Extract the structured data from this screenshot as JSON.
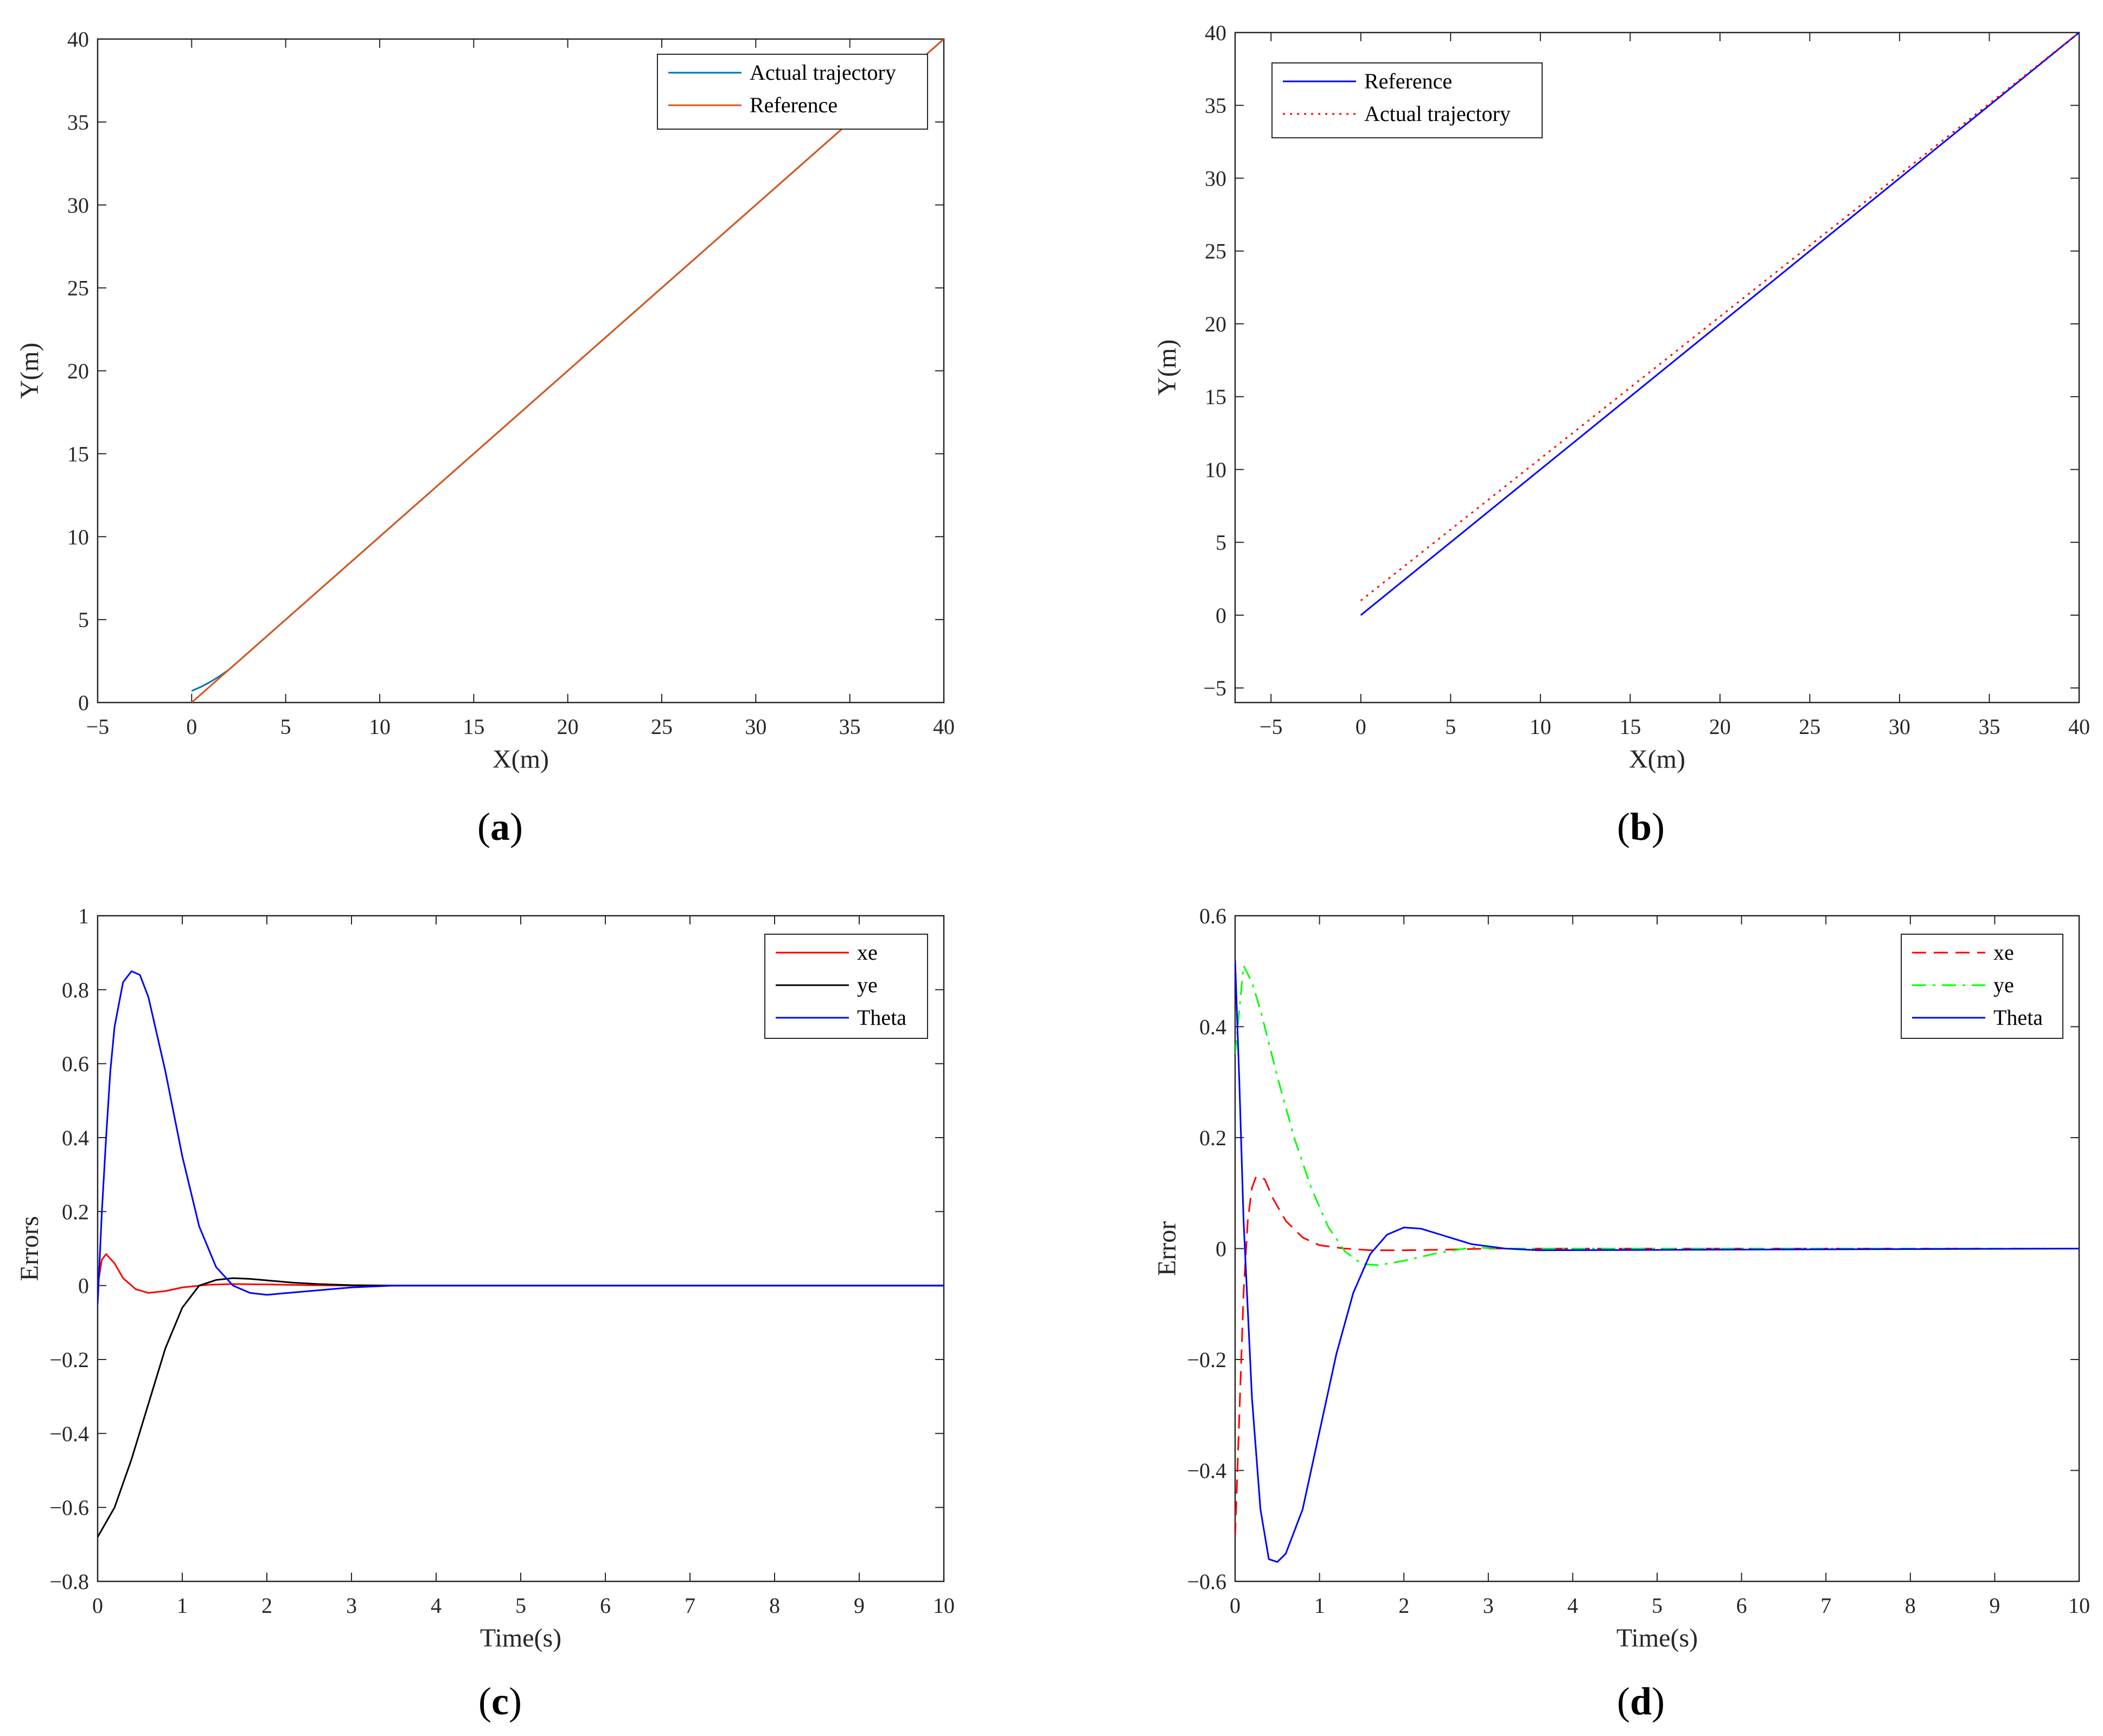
{
  "chart_data": [
    {
      "id": "a",
      "type": "line",
      "caption": {
        "open": "(",
        "letter": "a",
        "close": ")"
      },
      "xlabel": "X(m)",
      "ylabel": "Y(m)",
      "xlim": [
        -5,
        40
      ],
      "ylim": [
        0,
        40
      ],
      "xticks": [
        -5,
        0,
        5,
        10,
        15,
        20,
        25,
        30,
        35,
        40
      ],
      "yticks": [
        0,
        5,
        10,
        15,
        20,
        25,
        30,
        35,
        40
      ],
      "legend_position": "top-right",
      "series": [
        {
          "name": "Actual trajectory",
          "color": "#0072BD",
          "dash": "solid",
          "x": [
            0,
            0.5,
            1,
            1.5,
            2,
            2.5,
            3,
            40
          ],
          "y": [
            0.7,
            0.95,
            1.25,
            1.6,
            2.0,
            2.5,
            3.0,
            40
          ]
        },
        {
          "name": "Reference",
          "color": "#D95319",
          "dash": "solid",
          "x": [
            0,
            40
          ],
          "y": [
            0,
            40
          ]
        }
      ]
    },
    {
      "id": "b",
      "type": "line",
      "caption": {
        "open": "(",
        "letter": "b",
        "close": ")"
      },
      "xlabel": "X(m)",
      "ylabel": "Y(m)",
      "xlim": [
        -7,
        40
      ],
      "ylim": [
        -6,
        40
      ],
      "xticks": [
        -5,
        0,
        5,
        10,
        15,
        20,
        25,
        30,
        35,
        40
      ],
      "yticks": [
        -5,
        0,
        5,
        10,
        15,
        20,
        25,
        30,
        35,
        40
      ],
      "legend_position": "top-left",
      "series": [
        {
          "name": "Reference",
          "color": "#0000FF",
          "dash": "solid",
          "x": [
            0,
            40
          ],
          "y": [
            0,
            40
          ]
        },
        {
          "name": "Actual trajectory",
          "color": "#FF0000",
          "dash": "dotted",
          "x": [
            0,
            40
          ],
          "y": [
            1,
            40
          ]
        }
      ]
    },
    {
      "id": "c",
      "type": "line",
      "caption": {
        "open": "(",
        "letter": "c",
        "close": ")"
      },
      "xlabel": "Time(s)",
      "ylabel": "Errors",
      "xlim": [
        0,
        10
      ],
      "ylim": [
        -0.8,
        1
      ],
      "xticks": [
        0,
        1,
        2,
        3,
        4,
        5,
        6,
        7,
        8,
        9,
        10
      ],
      "yticks": [
        -0.8,
        -0.6,
        -0.4,
        -0.2,
        0,
        0.2,
        0.4,
        0.6,
        0.8,
        1
      ],
      "legend_position": "top-right",
      "series": [
        {
          "name": "xe",
          "color": "#FF0000",
          "dash": "solid",
          "x": [
            0,
            0.05,
            0.1,
            0.2,
            0.3,
            0.45,
            0.6,
            0.8,
            1.0,
            1.3,
            1.6,
            2.0,
            2.5,
            3.0,
            10
          ],
          "y": [
            0.0,
            0.07,
            0.085,
            0.06,
            0.02,
            -0.01,
            -0.02,
            -0.015,
            -0.005,
            0.002,
            0.004,
            0.003,
            0.001,
            0.0,
            0.0
          ]
        },
        {
          "name": "ye",
          "color": "#000000",
          "dash": "solid",
          "x": [
            0,
            0.2,
            0.4,
            0.6,
            0.8,
            1.0,
            1.2,
            1.4,
            1.6,
            1.8,
            2.0,
            2.3,
            2.6,
            3.0,
            3.5,
            10
          ],
          "y": [
            -0.68,
            -0.6,
            -0.47,
            -0.32,
            -0.17,
            -0.06,
            0.0,
            0.015,
            0.02,
            0.018,
            0.014,
            0.008,
            0.004,
            0.001,
            0.0,
            0.0
          ]
        },
        {
          "name": "Theta",
          "color": "#0000FF",
          "dash": "solid",
          "x": [
            0,
            0.05,
            0.1,
            0.15,
            0.2,
            0.3,
            0.4,
            0.5,
            0.6,
            0.8,
            1.0,
            1.2,
            1.4,
            1.6,
            1.8,
            2.0,
            2.5,
            3.0,
            3.5,
            10
          ],
          "y": [
            -0.05,
            0.2,
            0.4,
            0.58,
            0.7,
            0.82,
            0.85,
            0.84,
            0.78,
            0.58,
            0.35,
            0.16,
            0.05,
            0.0,
            -0.02,
            -0.025,
            -0.015,
            -0.005,
            0.0,
            0.0
          ]
        }
      ]
    },
    {
      "id": "d",
      "type": "line",
      "caption": {
        "open": "(",
        "letter": "d",
        "close": ")"
      },
      "xlabel": "Time(s)",
      "ylabel": "Error",
      "xlim": [
        0,
        10
      ],
      "ylim": [
        -0.6,
        0.6
      ],
      "xticks": [
        0,
        1,
        2,
        3,
        4,
        5,
        6,
        7,
        8,
        9,
        10
      ],
      "yticks": [
        -0.6,
        -0.4,
        -0.2,
        0,
        0.2,
        0.4,
        0.6
      ],
      "legend_position": "top-right",
      "series": [
        {
          "name": "xe",
          "color": "#FF0000",
          "dash": "dashed",
          "x": [
            0,
            0.05,
            0.1,
            0.15,
            0.2,
            0.25,
            0.35,
            0.45,
            0.6,
            0.8,
            1.0,
            1.3,
            1.6,
            2.0,
            2.5,
            3.0,
            10
          ],
          "y": [
            -0.52,
            -0.3,
            -0.08,
            0.05,
            0.11,
            0.13,
            0.125,
            0.09,
            0.05,
            0.02,
            0.006,
            0.0,
            -0.003,
            -0.003,
            -0.002,
            0.0,
            0.0
          ]
        },
        {
          "name": "ye",
          "color": "#00FF00",
          "dash": "dashdot",
          "x": [
            0,
            0.1,
            0.2,
            0.3,
            0.5,
            0.7,
            0.9,
            1.1,
            1.3,
            1.5,
            1.7,
            2.0,
            2.4,
            2.8,
            3.2,
            10
          ],
          "y": [
            0.35,
            0.51,
            0.48,
            0.43,
            0.31,
            0.2,
            0.11,
            0.04,
            -0.005,
            -0.028,
            -0.03,
            -0.022,
            -0.008,
            0.002,
            0.0,
            0.0
          ]
        },
        {
          "name": "Theta",
          "color": "#0000FF",
          "dash": "solid",
          "x": [
            0,
            0.05,
            0.1,
            0.2,
            0.3,
            0.4,
            0.5,
            0.6,
            0.8,
            1.0,
            1.2,
            1.4,
            1.6,
            1.8,
            2.0,
            2.2,
            2.5,
            2.8,
            3.2,
            3.6,
            10
          ],
          "y": [
            0.52,
            0.3,
            0.05,
            -0.27,
            -0.47,
            -0.56,
            -0.565,
            -0.55,
            -0.47,
            -0.33,
            -0.19,
            -0.08,
            -0.01,
            0.025,
            0.038,
            0.036,
            0.022,
            0.008,
            0.0,
            -0.003,
            0.0
          ]
        }
      ]
    }
  ]
}
